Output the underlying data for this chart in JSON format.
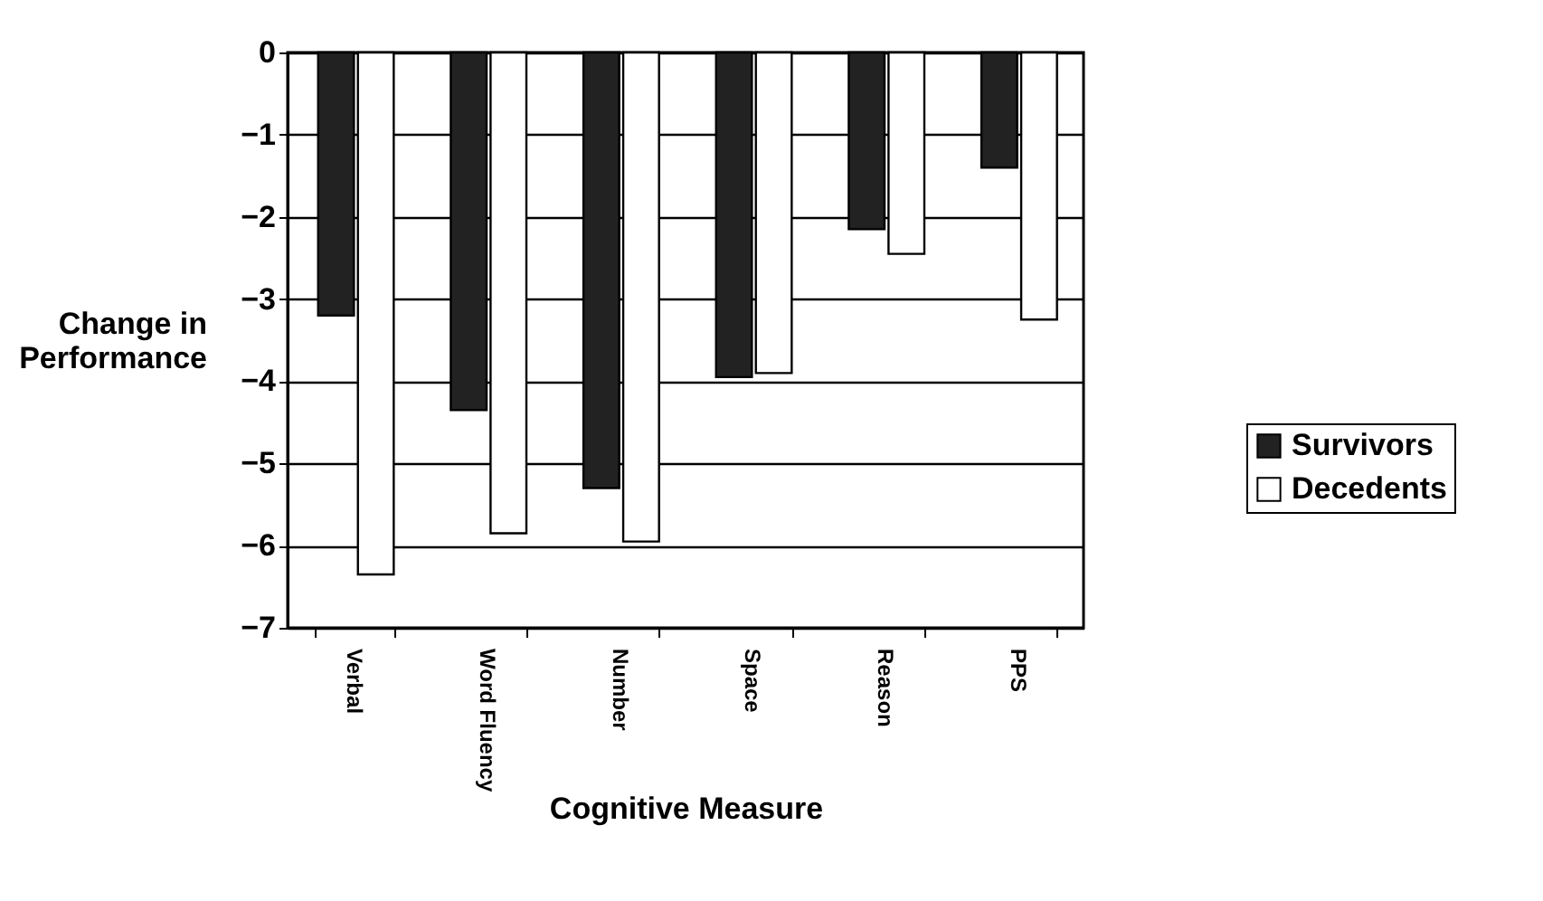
{
  "chart_data": {
    "type": "bar",
    "xlabel": "Cognitive Measure",
    "ylabel": "Change in Performance",
    "categories": [
      "Verbal",
      "Word Fluency",
      "Number",
      "Space",
      "Reason",
      "PPS"
    ],
    "series": [
      {
        "name": "Survivors",
        "color": "#222222",
        "values": [
          -3.2,
          -4.35,
          -5.3,
          -3.95,
          -2.15,
          -1.4
        ]
      },
      {
        "name": "Decedents",
        "color": "#ffffff",
        "values": [
          -6.35,
          -5.85,
          -5.95,
          -3.9,
          -2.45,
          -3.25
        ]
      }
    ],
    "ylim": [
      -7,
      0
    ],
    "yticks": [
      0,
      -1,
      -2,
      -3,
      -4,
      -5,
      -6,
      -7
    ],
    "grid": "y",
    "legend": "right"
  }
}
